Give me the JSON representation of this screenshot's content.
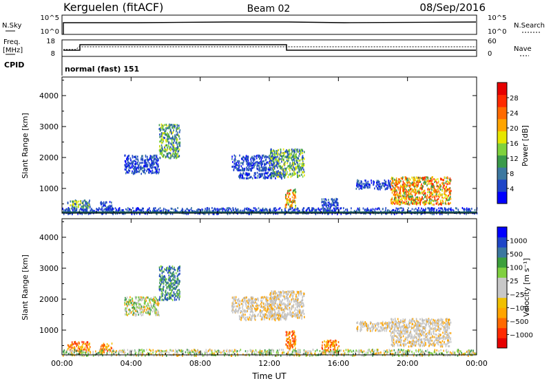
{
  "header": {
    "title": "Kerguelen (fitACF)",
    "beam": "Beam 02",
    "date": "08/Sep/2016"
  },
  "top_panels": {
    "nsky_label": "N.Sky",
    "nsky_ticks": [
      "10^5",
      "10^0"
    ],
    "nsearch_label": "N.Search",
    "nsearch_ticks": [
      "10^5",
      "10^0"
    ],
    "freq_label_1": "Freq.",
    "freq_label_2": "[MHz]",
    "freq_ticks": [
      "18",
      "8"
    ],
    "nave_label": "Nave",
    "nave_ticks": [
      "60",
      "0"
    ],
    "cpid_label": "CPID",
    "cpid_text": "normal (fast) 151"
  },
  "chart_data": [
    {
      "type": "heatmap",
      "name": "power",
      "ylabel": "Slant Range [km]",
      "yticks": [
        "1000",
        "2000",
        "3000",
        "4000"
      ],
      "ylim": [
        200,
        4600
      ],
      "xlim": [
        0,
        24
      ],
      "colorbar_label": "Power [dB]",
      "colorbar_ticks": [
        "28",
        "24",
        "20",
        "16",
        "12",
        "8",
        "4"
      ],
      "colorbar_colors": [
        "#0000ff",
        "#1f46c8",
        "#3c78a0",
        "#3a9a4a",
        "#7fd23c",
        "#e6e600",
        "#ffa500",
        "#ff6a00",
        "#ff2a00",
        "#e60000"
      ],
      "regions": [
        {
          "x": [
            0.3,
            1.6
          ],
          "y": [
            350,
            650
          ],
          "level": "mid"
        },
        {
          "x": [
            2.2,
            2.9
          ],
          "y": [
            300,
            600
          ],
          "level": "low"
        },
        {
          "x": [
            3.6,
            5.6
          ],
          "y": [
            1500,
            2100
          ],
          "level": "low"
        },
        {
          "x": [
            5.6,
            6.8
          ],
          "y": [
            2000,
            3100
          ],
          "level": "mid"
        },
        {
          "x": [
            9.8,
            12.3
          ],
          "y": [
            1600,
            2100
          ],
          "level": "low"
        },
        {
          "x": [
            10.2,
            13.0
          ],
          "y": [
            1350,
            1550
          ],
          "level": "low"
        },
        {
          "x": [
            12.0,
            14.0
          ],
          "y": [
            1400,
            2300
          ],
          "level": "mid"
        },
        {
          "x": [
            12.9,
            13.5
          ],
          "y": [
            400,
            1000
          ],
          "level": "high"
        },
        {
          "x": [
            15.0,
            16.0
          ],
          "y": [
            300,
            700
          ],
          "level": "low"
        },
        {
          "x": [
            17.0,
            19.0
          ],
          "y": [
            1000,
            1300
          ],
          "level": "low"
        },
        {
          "x": [
            19.0,
            22.5
          ],
          "y": [
            500,
            1400
          ],
          "level": "high"
        },
        {
          "x": [
            0.0,
            24.0
          ],
          "y": [
            200,
            400
          ],
          "level": "low"
        }
      ]
    },
    {
      "type": "heatmap",
      "name": "velocity",
      "ylabel": "Slant Range [km]",
      "yticks": [
        "1000",
        "2000",
        "3000",
        "4000"
      ],
      "ylim": [
        200,
        4600
      ],
      "xlim": [
        0,
        24
      ],
      "xticks": [
        "00:00",
        "04:00",
        "08:00",
        "12:00",
        "16:00",
        "20:00",
        "00:00"
      ],
      "xlabel": "Time UT",
      "colorbar_label": "Velocity [m s⁻¹]",
      "colorbar_ticks": [
        "1000",
        "500",
        "100",
        "25",
        "−25",
        "−100",
        "−500",
        "−1000"
      ],
      "colorbar_colors": [
        "#e60000",
        "#ff2a00",
        "#ff6a00",
        "#ffa500",
        "#f0c000",
        "#c8c8c8",
        "#c8c8c8",
        "#80d040",
        "#3ca03c",
        "#3c78a0",
        "#1f46c8",
        "#0000ff"
      ],
      "regions": [
        {
          "x": [
            0.3,
            1.6
          ],
          "y": [
            350,
            650
          ],
          "level": "neg"
        },
        {
          "x": [
            2.2,
            2.9
          ],
          "y": [
            300,
            600
          ],
          "level": "neg"
        },
        {
          "x": [
            3.6,
            5.6
          ],
          "y": [
            1500,
            2100
          ],
          "level": "mix"
        },
        {
          "x": [
            5.6,
            6.8
          ],
          "y": [
            2000,
            3100
          ],
          "level": "pos"
        },
        {
          "x": [
            9.8,
            12.3
          ],
          "y": [
            1600,
            2100
          ],
          "level": "zero"
        },
        {
          "x": [
            10.2,
            13.0
          ],
          "y": [
            1350,
            1550
          ],
          "level": "zero"
        },
        {
          "x": [
            12.0,
            14.0
          ],
          "y": [
            1400,
            2300
          ],
          "level": "zero"
        },
        {
          "x": [
            12.9,
            13.5
          ],
          "y": [
            400,
            1000
          ],
          "level": "neg"
        },
        {
          "x": [
            15.0,
            16.0
          ],
          "y": [
            300,
            700
          ],
          "level": "neg"
        },
        {
          "x": [
            17.0,
            19.0
          ],
          "y": [
            1000,
            1300
          ],
          "level": "zero"
        },
        {
          "x": [
            19.0,
            22.5
          ],
          "y": [
            500,
            1400
          ],
          "level": "zero"
        },
        {
          "x": [
            0.0,
            24.0
          ],
          "y": [
            200,
            400
          ],
          "level": "mix"
        }
      ]
    }
  ]
}
